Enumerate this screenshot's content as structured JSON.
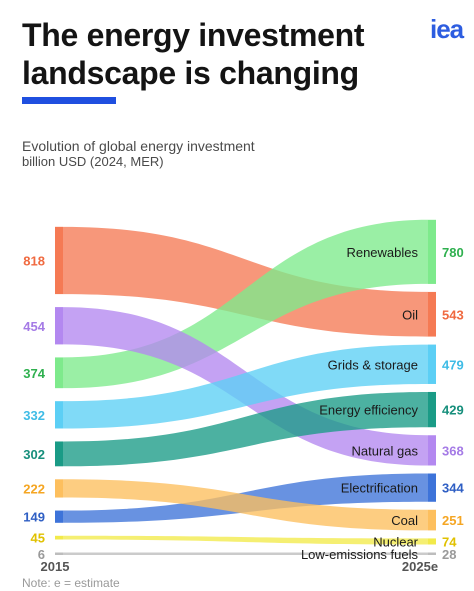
{
  "header": {
    "title": "The energy investment landscape is changing",
    "logo": "iea",
    "subtitle": "Evolution of global energy investment",
    "unit": "billion USD (2024, MER)",
    "note": "Note: e = estimate"
  },
  "colors": {
    "accent": "#1f4fe0",
    "logo": "#2d5de0"
  },
  "chart_data": {
    "type": "sankey-slope",
    "title": "Evolution of global energy investment",
    "unit": "billion USD (2024, MER)",
    "x_labels": [
      "2015",
      "2025e"
    ],
    "series": [
      {
        "name": "Oil",
        "color": "#f57a54",
        "text_color": "#f06a40",
        "start": 818,
        "end": 543,
        "start_rank": 0,
        "end_rank": 1
      },
      {
        "name": "Natural gas",
        "color": "#b388f0",
        "text_color": "#a57be6",
        "start": 454,
        "end": 368,
        "start_rank": 1,
        "end_rank": 4
      },
      {
        "name": "Renewables",
        "color": "#7eea8c",
        "text_color": "#2fb04f",
        "start": 374,
        "end": 780,
        "start_rank": 2,
        "end_rank": 0
      },
      {
        "name": "Grids & storage",
        "color": "#5ccff5",
        "text_color": "#3fbce6",
        "start": 332,
        "end": 479,
        "start_rank": 3,
        "end_rank": 2
      },
      {
        "name": "Energy efficiency",
        "color": "#1a9b86",
        "text_color": "#178f7c",
        "start": 302,
        "end": 429,
        "start_rank": 4,
        "end_rank": 3
      },
      {
        "name": "Coal",
        "color": "#fdbf5e",
        "text_color": "#f5a623",
        "start": 222,
        "end": 251,
        "start_rank": 5,
        "end_rank": 6
      },
      {
        "name": "Electrification",
        "color": "#3d73d9",
        "text_color": "#2f5fc4",
        "start": 149,
        "end": 344,
        "start_rank": 6,
        "end_rank": 5
      },
      {
        "name": "Nuclear",
        "color": "#f2ea4a",
        "text_color": "#e0c100",
        "start": 45,
        "end": 74,
        "start_rank": 7,
        "end_rank": 7
      },
      {
        "name": "Low-emissions fuels",
        "color": "#bdbdbd",
        "text_color": "#9a9a9a",
        "start": 6,
        "end": 28,
        "start_rank": 8,
        "end_rank": 8
      }
    ]
  }
}
